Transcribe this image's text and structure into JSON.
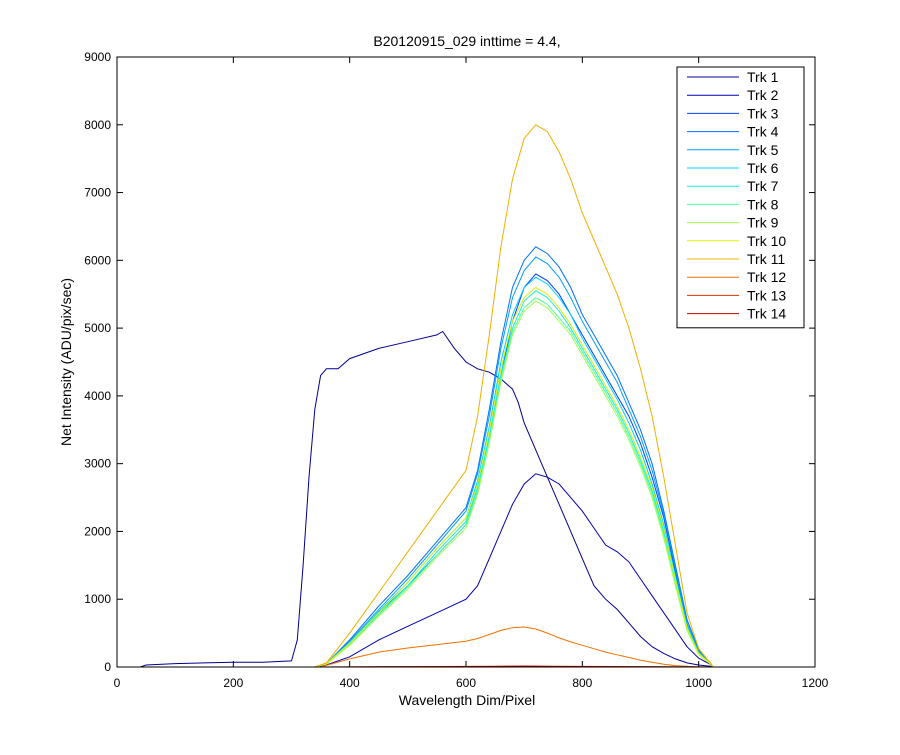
{
  "chart_data": {
    "type": "line",
    "title": "B20120915_029 inttime = 4.4,",
    "xlabel": "Wavelength Dim/Pixel",
    "ylabel": "Net Intensity (ADU/pix/sec)",
    "xlim": [
      0,
      1200
    ],
    "ylim": [
      0,
      9000
    ],
    "xticks": [
      0,
      200,
      400,
      600,
      800,
      1000,
      1200
    ],
    "yticks": [
      0,
      1000,
      2000,
      3000,
      4000,
      5000,
      6000,
      7000,
      8000,
      9000
    ],
    "xtick_labels": [
      "0",
      "200",
      "400",
      "600",
      "800",
      "1000",
      "1200"
    ],
    "ytick_labels": [
      "0",
      "1000",
      "2000",
      "3000",
      "4000",
      "5000",
      "6000",
      "7000",
      "8000",
      "9000"
    ],
    "grid": false,
    "legend_position": "top-right",
    "series": [
      {
        "name": "Trk 1",
        "color": "#00008f",
        "x": [
          0,
          40,
          50,
          100,
          150,
          200,
          250,
          300,
          310,
          320,
          330,
          340,
          350,
          360,
          380,
          400,
          450,
          500,
          550,
          560,
          580,
          600,
          620,
          640,
          660,
          680,
          690,
          700,
          720,
          740,
          760,
          780,
          800,
          820,
          840,
          860,
          880,
          900,
          920,
          940,
          960,
          980,
          1000,
          1020,
          1025
        ],
        "y": [
          0,
          0,
          30,
          50,
          60,
          70,
          70,
          90,
          400,
          1500,
          2800,
          3800,
          4300,
          4400,
          4400,
          4550,
          4700,
          4800,
          4900,
          4950,
          4700,
          4500,
          4400,
          4350,
          4250,
          4100,
          3900,
          3600,
          3200,
          2800,
          2400,
          2000,
          1600,
          1200,
          1000,
          850,
          650,
          450,
          300,
          200,
          120,
          60,
          30,
          10,
          0
        ]
      },
      {
        "name": "Trk 2",
        "color": "#0000b0",
        "x": [
          0,
          340,
          360,
          400,
          450,
          500,
          550,
          600,
          620,
          640,
          660,
          680,
          700,
          720,
          740,
          760,
          780,
          800,
          820,
          840,
          860,
          880,
          900,
          920,
          940,
          960,
          980,
          1000,
          1020,
          1025
        ],
        "y": [
          0,
          0,
          30,
          150,
          400,
          600,
          800,
          1000,
          1200,
          1600,
          2000,
          2400,
          2700,
          2850,
          2800,
          2700,
          2500,
          2300,
          2050,
          1800,
          1700,
          1550,
          1300,
          1050,
          800,
          550,
          300,
          130,
          40,
          0
        ]
      },
      {
        "name": "Trk 3",
        "color": "#0040ff",
        "x": [
          0,
          340,
          360,
          400,
          450,
          500,
          550,
          600,
          620,
          640,
          660,
          680,
          700,
          720,
          740,
          760,
          780,
          800,
          820,
          840,
          860,
          880,
          900,
          920,
          940,
          960,
          980,
          1000,
          1020,
          1025
        ],
        "y": [
          0,
          0,
          50,
          350,
          800,
          1200,
          1650,
          2100,
          2600,
          3400,
          4300,
          5100,
          5600,
          5800,
          5700,
          5500,
          5200,
          4900,
          4600,
          4300,
          4000,
          3700,
          3300,
          2800,
          2200,
          1400,
          600,
          200,
          50,
          0
        ]
      },
      {
        "name": "Trk 4",
        "color": "#0070ff",
        "x": [
          0,
          340,
          360,
          400,
          450,
          500,
          550,
          600,
          620,
          640,
          660,
          680,
          700,
          720,
          740,
          760,
          780,
          800,
          820,
          840,
          860,
          880,
          900,
          920,
          940,
          960,
          980,
          1000,
          1020,
          1025
        ],
        "y": [
          0,
          0,
          50,
          400,
          900,
          1350,
          1850,
          2350,
          2900,
          3800,
          4800,
          5600,
          6000,
          6200,
          6100,
          5900,
          5600,
          5200,
          4900,
          4600,
          4300,
          3900,
          3500,
          3000,
          2300,
          1500,
          700,
          250,
          60,
          0
        ]
      },
      {
        "name": "Trk 5",
        "color": "#00a0ff",
        "x": [
          0,
          340,
          360,
          400,
          450,
          500,
          550,
          600,
          620,
          640,
          660,
          680,
          700,
          720,
          740,
          760,
          780,
          800,
          820,
          840,
          860,
          880,
          900,
          920,
          940,
          960,
          980,
          1000,
          1020,
          1025
        ],
        "y": [
          0,
          0,
          50,
          380,
          850,
          1300,
          1800,
          2300,
          2850,
          3700,
          4700,
          5450,
          5850,
          6050,
          5950,
          5750,
          5450,
          5100,
          4800,
          4500,
          4200,
          3800,
          3400,
          2900,
          2250,
          1450,
          650,
          230,
          55,
          0
        ]
      },
      {
        "name": "Trk 6",
        "color": "#00d0ff",
        "x": [
          0,
          340,
          360,
          400,
          450,
          500,
          550,
          600,
          620,
          640,
          660,
          680,
          700,
          720,
          740,
          760,
          780,
          800,
          820,
          840,
          860,
          880,
          900,
          920,
          940,
          960,
          980,
          1000,
          1020,
          1025
        ],
        "y": [
          0,
          0,
          50,
          360,
          820,
          1250,
          1750,
          2200,
          2750,
          3550,
          4500,
          5200,
          5600,
          5750,
          5650,
          5450,
          5200,
          4850,
          4550,
          4250,
          3950,
          3600,
          3200,
          2700,
          2100,
          1350,
          600,
          210,
          50,
          0
        ]
      },
      {
        "name": "Trk 7",
        "color": "#10f0e0",
        "x": [
          0,
          340,
          360,
          400,
          450,
          500,
          550,
          600,
          620,
          640,
          660,
          680,
          700,
          720,
          740,
          760,
          780,
          800,
          820,
          840,
          860,
          880,
          900,
          920,
          940,
          960,
          980,
          1000,
          1020,
          1025
        ],
        "y": [
          0,
          0,
          45,
          340,
          790,
          1200,
          1700,
          2150,
          2650,
          3400,
          4300,
          5000,
          5400,
          5550,
          5450,
          5250,
          5000,
          4700,
          4400,
          4100,
          3800,
          3450,
          3050,
          2600,
          2000,
          1300,
          580,
          200,
          50,
          0
        ]
      },
      {
        "name": "Trk 8",
        "color": "#50ffa0",
        "x": [
          0,
          340,
          360,
          400,
          450,
          500,
          550,
          600,
          620,
          640,
          660,
          680,
          700,
          720,
          740,
          760,
          780,
          800,
          820,
          840,
          860,
          880,
          900,
          920,
          940,
          960,
          980,
          1000,
          1020,
          1025
        ],
        "y": [
          0,
          0,
          45,
          330,
          770,
          1180,
          1650,
          2100,
          2600,
          3350,
          4250,
          4950,
          5300,
          5450,
          5350,
          5150,
          4950,
          4650,
          4350,
          4050,
          3750,
          3400,
          3000,
          2550,
          1950,
          1250,
          560,
          190,
          45,
          0
        ]
      },
      {
        "name": "Trk 9",
        "color": "#a0ff50",
        "x": [
          0,
          340,
          360,
          400,
          450,
          500,
          550,
          600,
          620,
          640,
          660,
          680,
          700,
          720,
          740,
          760,
          780,
          800,
          820,
          840,
          860,
          880,
          900,
          920,
          940,
          960,
          980,
          1000,
          1020,
          1025
        ],
        "y": [
          0,
          0,
          45,
          320,
          750,
          1150,
          1620,
          2050,
          2550,
          3300,
          4200,
          4900,
          5250,
          5400,
          5300,
          5100,
          4900,
          4600,
          4300,
          4000,
          3700,
          3350,
          2950,
          2500,
          1900,
          1200,
          540,
          180,
          45,
          0
        ]
      },
      {
        "name": "Trk 10",
        "color": "#e0f000",
        "x": [
          0,
          340,
          360,
          400,
          450,
          500,
          550,
          600,
          620,
          640,
          660,
          680,
          700,
          720,
          740,
          760,
          780,
          800,
          820,
          840,
          860,
          880,
          900,
          920,
          940,
          960,
          980,
          1000,
          1020,
          1025
        ],
        "y": [
          0,
          0,
          50,
          350,
          800,
          1250,
          1750,
          2200,
          2700,
          3500,
          4400,
          5100,
          5450,
          5600,
          5500,
          5300,
          5050,
          4750,
          4450,
          4150,
          3850,
          3500,
          3100,
          2650,
          2050,
          1300,
          580,
          200,
          50,
          0
        ]
      },
      {
        "name": "Trk 11",
        "color": "#f0b000",
        "x": [
          0,
          340,
          360,
          400,
          450,
          500,
          550,
          600,
          620,
          640,
          660,
          680,
          700,
          720,
          740,
          760,
          780,
          800,
          820,
          840,
          860,
          880,
          900,
          920,
          940,
          960,
          980,
          1000,
          1020,
          1025
        ],
        "y": [
          0,
          0,
          60,
          500,
          1100,
          1700,
          2300,
          2900,
          3700,
          4900,
          6200,
          7200,
          7800,
          8000,
          7900,
          7600,
          7200,
          6700,
          6300,
          5900,
          5500,
          5000,
          4400,
          3700,
          2800,
          1800,
          800,
          270,
          60,
          0
        ]
      },
      {
        "name": "Trk 12",
        "color": "#f07000",
        "x": [
          0,
          350,
          400,
          450,
          500,
          550,
          600,
          620,
          640,
          660,
          680,
          700,
          720,
          740,
          760,
          780,
          800,
          820,
          840,
          860,
          880,
          900,
          920,
          940,
          960,
          980,
          1000,
          1020,
          1025
        ],
        "y": [
          0,
          0,
          120,
          220,
          280,
          330,
          380,
          420,
          480,
          540,
          580,
          590,
          560,
          500,
          430,
          370,
          320,
          270,
          220,
          180,
          140,
          100,
          70,
          40,
          20,
          10,
          5,
          0,
          0
        ]
      },
      {
        "name": "Trk 13",
        "color": "#e03000",
        "x": [
          0,
          350,
          450,
          550,
          650,
          700,
          750,
          850,
          950,
          1025
        ],
        "y": [
          0,
          0,
          5,
          8,
          12,
          15,
          12,
          8,
          3,
          0
        ]
      },
      {
        "name": "Trk 14",
        "color": "#c00000",
        "x": [
          0,
          350,
          450,
          550,
          650,
          700,
          750,
          850,
          950,
          1025
        ],
        "y": [
          0,
          0,
          3,
          5,
          8,
          10,
          8,
          5,
          2,
          0
        ]
      }
    ]
  }
}
